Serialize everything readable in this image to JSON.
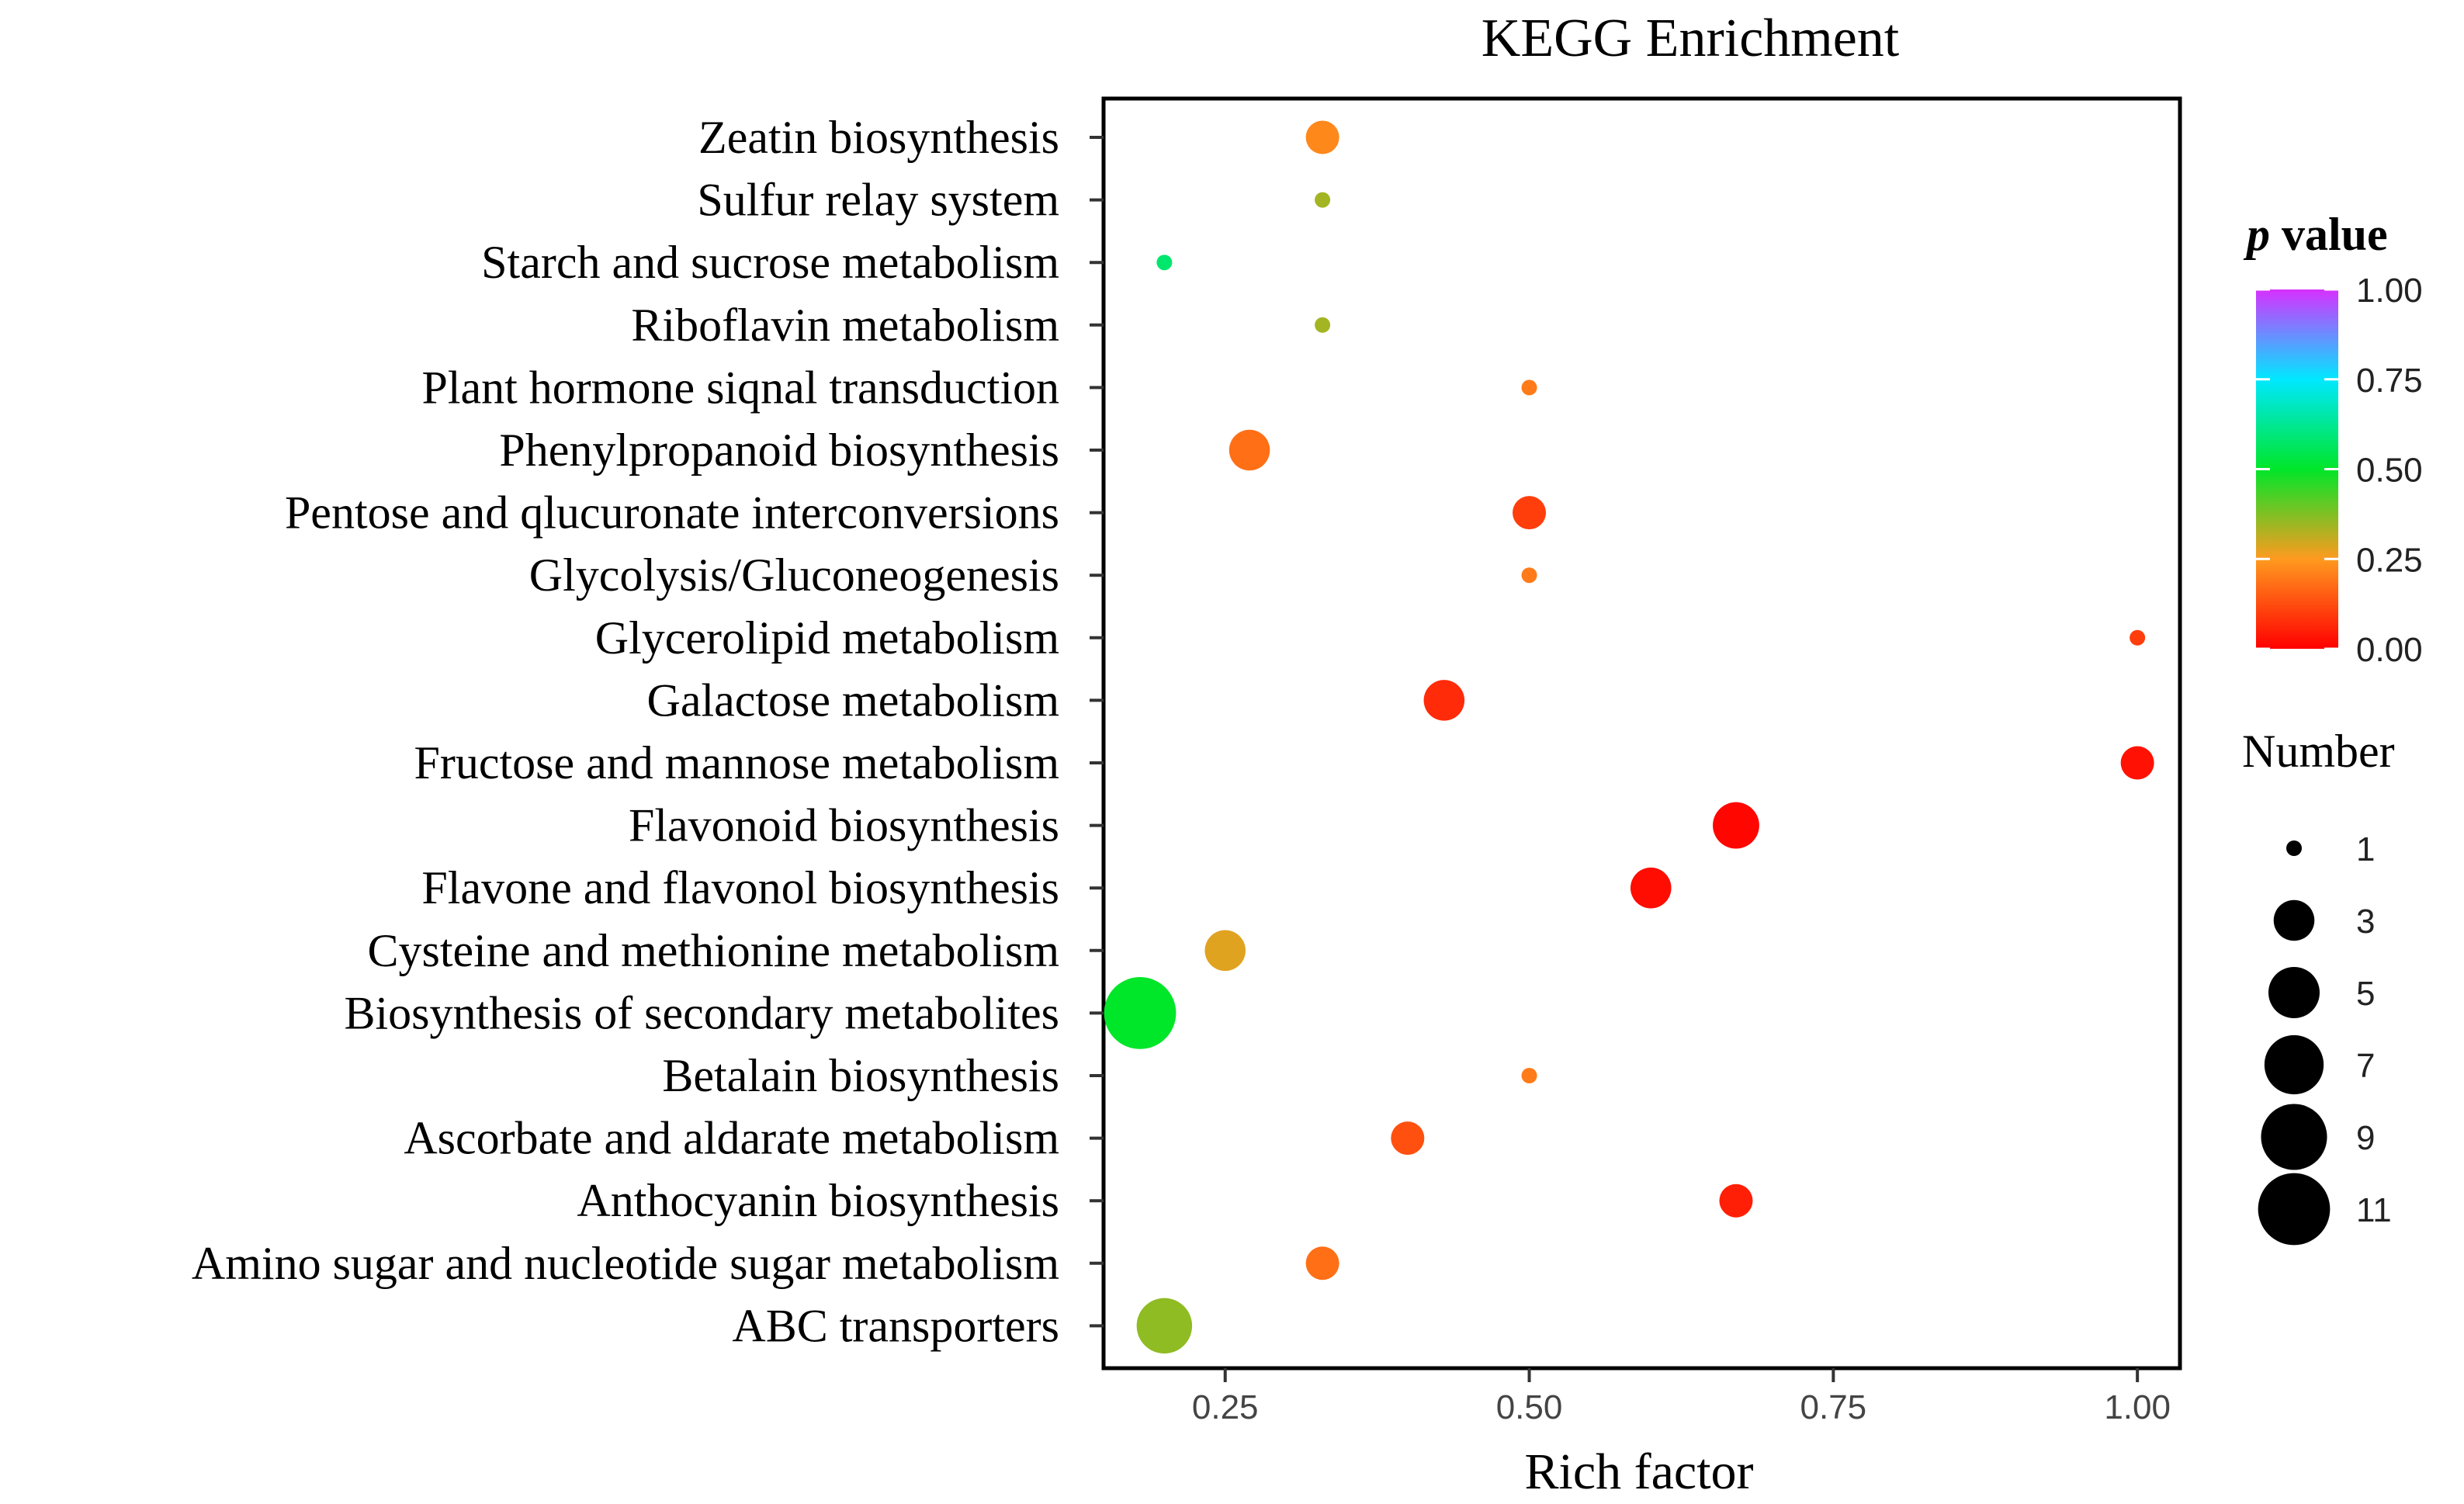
{
  "chart_data": {
    "type": "scatter",
    "title": "KEGG Enrichment",
    "xlabel": "Rich factor",
    "ylabel": "",
    "xlim": [
      0.15,
      1.035
    ],
    "xticks": [
      0.25,
      0.5,
      0.75,
      1.0
    ],
    "xtick_labels": [
      "0.25",
      "0.50",
      "0.75",
      "1.00"
    ],
    "pathways": [
      {
        "name": "Zeatin biosynthesis",
        "rich_factor": 0.33,
        "number": 2,
        "p_value": 0.22
      },
      {
        "name": "Sulfur relay system",
        "rich_factor": 0.33,
        "number": 1,
        "p_value": 0.34
      },
      {
        "name": "Starch and sucrose metabolism",
        "rich_factor": 0.2,
        "number": 1,
        "p_value": 0.58
      },
      {
        "name": "Riboflavin metabolism",
        "rich_factor": 0.33,
        "number": 1,
        "p_value": 0.34
      },
      {
        "name": "Plant hormone siqnal transduction",
        "rich_factor": 0.5,
        "number": 1,
        "p_value": 0.2
      },
      {
        "name": "Phenylpropanoid biosynthesis",
        "rich_factor": 0.27,
        "number": 3,
        "p_value": 0.18
      },
      {
        "name": "Pentose and qlucuronate interconversions",
        "rich_factor": 0.5,
        "number": 2,
        "p_value": 0.1
      },
      {
        "name": "Glycolysis/Gluconeogenesis",
        "rich_factor": 0.5,
        "number": 1,
        "p_value": 0.2
      },
      {
        "name": "Glycerolipid metabolism",
        "rich_factor": 1.0,
        "number": 1,
        "p_value": 0.1
      },
      {
        "name": "Galactose metabolism",
        "rich_factor": 0.43,
        "number": 3,
        "p_value": 0.07
      },
      {
        "name": "Fructose and mannose metabolism",
        "rich_factor": 1.0,
        "number": 2,
        "p_value": 0.03
      },
      {
        "name": "Flavonoid biosynthesis",
        "rich_factor": 0.67,
        "number": 4,
        "p_value": 0.01
      },
      {
        "name": "Flavone and flavonol biosynthesis",
        "rich_factor": 0.6,
        "number": 3,
        "p_value": 0.02
      },
      {
        "name": "Cysteine and methionine metabolism",
        "rich_factor": 0.25,
        "number": 3,
        "p_value": 0.28
      },
      {
        "name": "Biosynthesis of secondary metabolites",
        "rich_factor": 0.18,
        "number": 11,
        "p_value": 0.5
      },
      {
        "name": "Betalain biosynthesis",
        "rich_factor": 0.5,
        "number": 1,
        "p_value": 0.2
      },
      {
        "name": "Ascorbate and aldarate metabolism",
        "rich_factor": 0.4,
        "number": 2,
        "p_value": 0.13
      },
      {
        "name": "Anthocyanin biosynthesis",
        "rich_factor": 0.67,
        "number": 2,
        "p_value": 0.05
      },
      {
        "name": "Amino sugar and nucleotide sugar metabolism",
        "rich_factor": 0.33,
        "number": 2,
        "p_value": 0.18
      },
      {
        "name": "ABC transporters",
        "rich_factor": 0.2,
        "number": 6,
        "p_value": 0.36
      }
    ],
    "color_legend": {
      "title_italic": "p",
      "title_rest": " value",
      "ticks": [
        1.0,
        0.75,
        0.5,
        0.25,
        0.0
      ],
      "tick_labels": [
        "1.00",
        "0.75",
        "0.50",
        "0.25",
        "0.00"
      ],
      "colors": [
        "#ff0000",
        "#ff9a1f",
        "#00e629",
        "#00e8ff",
        "#d730ff"
      ]
    },
    "size_legend": {
      "title": "Number",
      "values": [
        1,
        3,
        5,
        7,
        9,
        11
      ],
      "labels": [
        "1",
        "3",
        "5",
        "7",
        "9",
        "11"
      ]
    }
  }
}
